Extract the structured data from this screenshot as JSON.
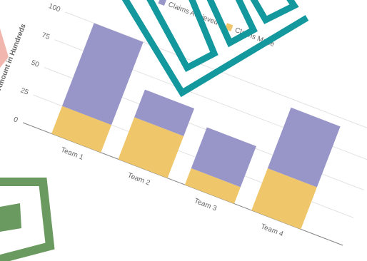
{
  "chart_data": {
    "type": "bar",
    "stacked": true,
    "y_label": "Amount in Hundreds",
    "categories": [
      "Team 1",
      "Team 2",
      "Team 3",
      "Team 4"
    ],
    "series": [
      {
        "name": "Claims Made",
        "color": "#efc66a",
        "values": [
          25,
          38,
          15,
          38
        ]
      },
      {
        "name": "Claims Achieved",
        "color": "#9896c8",
        "values": [
          75,
          25,
          37,
          55
        ]
      }
    ],
    "ylim": [
      0,
      100
    ],
    "yticks": [
      0,
      25,
      50,
      75,
      100
    ],
    "grid": true
  }
}
